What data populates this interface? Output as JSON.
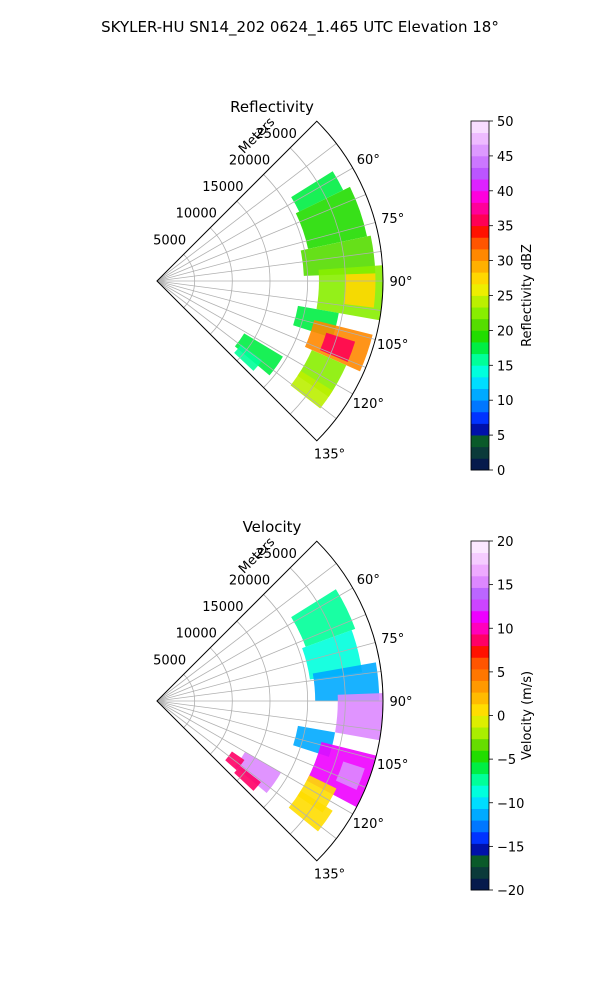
{
  "figure": {
    "suptitle": "SKYLER-HU  SN14_202  0624_1.465 UTC Elevation 18°"
  },
  "chart_data": [
    {
      "type": "heatmap",
      "title": "Reflectivity",
      "r_axis_label": "Meters",
      "r_ticks": [
        5000,
        10000,
        15000,
        20000,
        25000
      ],
      "r_tick_labels": [
        "5000",
        "10000",
        "15000",
        "20000",
        "25000"
      ],
      "theta_ticks": [
        60,
        75,
        90,
        105,
        120,
        135
      ],
      "theta_tick_labels": [
        "60°",
        "75°",
        "90°",
        "105°",
        "120°",
        "135°"
      ],
      "theta_range": [
        45,
        135
      ],
      "r_range": [
        0,
        30000
      ],
      "grid": true,
      "colorbar": {
        "label": "Reflectivity dBZ",
        "range": [
          0,
          50
        ],
        "ticks": [
          0,
          5,
          10,
          15,
          20,
          25,
          30,
          35,
          40,
          45,
          50
        ],
        "tick_labels": [
          "0",
          "5",
          "10",
          "15",
          "20",
          "25",
          "30",
          "35",
          "40",
          "45",
          "50"
        ]
      },
      "regions": [
        {
          "theta": [
            58,
            64
          ],
          "r": [
            21000,
            27500
          ],
          "value": 18
        },
        {
          "theta": [
            64,
            78
          ],
          "r": [
            20500,
            28500
          ],
          "value": 19
        },
        {
          "theta": [
            78,
            88
          ],
          "r": [
            19500,
            29000
          ],
          "value": 20
        },
        {
          "theta": [
            86,
            100
          ],
          "r": [
            21500,
            30000
          ],
          "value": 23
        },
        {
          "theta": [
            88,
            97
          ],
          "r": [
            25000,
            29000
          ],
          "value": 27
        },
        {
          "theta": [
            100,
            108
          ],
          "r": [
            19000,
            24500
          ],
          "value": 18
        },
        {
          "theta": [
            104,
            114
          ],
          "r": [
            21500,
            29500
          ],
          "value": 30
        },
        {
          "theta": [
            107,
            113
          ],
          "r": [
            23500,
            27500
          ],
          "value": 35
        },
        {
          "theta": [
            114,
            124
          ],
          "r": [
            22500,
            27500
          ],
          "value": 22
        },
        {
          "theta": [
            122,
            128
          ],
          "r": [
            22500,
            27500
          ],
          "value": 24
        },
        {
          "theta": [
            121,
            130
          ],
          "r": [
            13500,
            19500
          ],
          "value": 17
        },
        {
          "theta": [
            127,
            133
          ],
          "r": [
            14000,
            17500
          ],
          "value": 15
        }
      ]
    },
    {
      "type": "heatmap",
      "title": "Velocity",
      "r_axis_label": "Meters",
      "r_ticks": [
        5000,
        10000,
        15000,
        20000,
        25000
      ],
      "r_tick_labels": [
        "5000",
        "10000",
        "15000",
        "20000",
        "25000"
      ],
      "theta_ticks": [
        60,
        75,
        90,
        105,
        120,
        135
      ],
      "theta_tick_labels": [
        "60°",
        "75°",
        "90°",
        "105°",
        "120°",
        "135°"
      ],
      "theta_range": [
        45,
        135
      ],
      "r_range": [
        0,
        30000
      ],
      "grid": true,
      "colorbar": {
        "label": "Velocity (m/s)",
        "range": [
          -20,
          20
        ],
        "ticks": [
          -20,
          -15,
          -10,
          -5,
          0,
          5,
          10,
          15,
          20
        ],
        "tick_labels": [
          "−20",
          "−15",
          "−10",
          "−5",
          "0",
          "5",
          "10",
          "15",
          "20"
        ]
      },
      "regions": [
        {
          "theta": [
            58,
            70
          ],
          "r": [
            21000,
            28000
          ],
          "value": -7
        },
        {
          "theta": [
            70,
            82
          ],
          "r": [
            20500,
            27500
          ],
          "value": -9
        },
        {
          "theta": [
            80,
            90
          ],
          "r": [
            21000,
            29500
          ],
          "value": -11
        },
        {
          "theta": [
            88,
            100
          ],
          "r": [
            24000,
            30000
          ],
          "value": 15
        },
        {
          "theta": [
            100,
            108
          ],
          "r": [
            19000,
            24000
          ],
          "value": -12
        },
        {
          "theta": [
            104,
            118
          ],
          "r": [
            22500,
            30000
          ],
          "value": 11
        },
        {
          "theta": [
            108,
            114
          ],
          "r": [
            26000,
            29000
          ],
          "value": 15
        },
        {
          "theta": [
            116,
            124
          ],
          "r": [
            22500,
            26500
          ],
          "value": 1
        },
        {
          "theta": [
            122,
            129
          ],
          "r": [
            22500,
            27500
          ],
          "value": 0
        },
        {
          "theta": [
            120,
            130
          ],
          "r": [
            13500,
            19000
          ],
          "value": 15
        },
        {
          "theta": [
            124,
            131
          ],
          "r": [
            12000,
            14000
          ],
          "value": 8
        },
        {
          "theta": [
            128,
            133
          ],
          "r": [
            14000,
            17500
          ],
          "value": 8
        }
      ]
    }
  ]
}
